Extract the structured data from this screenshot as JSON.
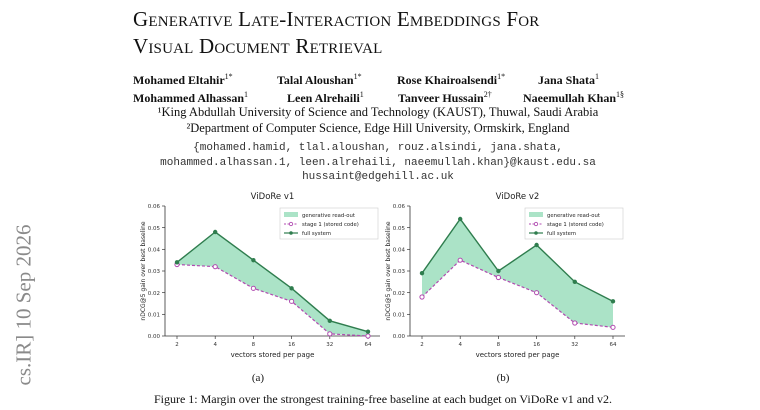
{
  "arxiv_stamp": "cs.IR]  10 Sep 2026",
  "title_line1": "Generative Late-Interaction Embeddings For",
  "title_line2": "Visual Document Retrieval",
  "authors_row1": [
    {
      "name": "Mohamed Eltahir",
      "sup": "1*"
    },
    {
      "name": "Talal Aloushan",
      "sup": "1*"
    },
    {
      "name": "Rose Khairoalsendi",
      "sup": "1*"
    },
    {
      "name": "Jana Shata",
      "sup": "1"
    }
  ],
  "authors_row2": [
    {
      "name": "Mohammed Alhassan",
      "sup": "1"
    },
    {
      "name": "Leen Alrehaili",
      "sup": "1"
    },
    {
      "name": "Tanveer Hussain",
      "sup": "2†"
    },
    {
      "name": "Naeemullah Khan",
      "sup": "1§"
    }
  ],
  "affiliation1": "¹King Abdullah University of Science and Technology (KAUST), Thuwal, Saudi Arabia",
  "affiliation2": "²Department of Computer Science, Edge Hill University, Ormskirk, England",
  "email_line1": "{mohamed.hamid, tlal.aloushan, rouz.alsindi, jana.shata,",
  "email_line2": "mohammed.alhassan.1, leen.alrehaili, naeemullah.khan}@kaust.edu.sa",
  "email_line3": "hussaint@edgehill.ac.uk",
  "colors": {
    "fill": "#8fd9b4",
    "full_line": "#2f7d4e",
    "stage_line": "#b04bb0"
  },
  "chart_data": [
    {
      "type": "line",
      "title": "ViDoRe v1",
      "xlabel": "vectors stored per page",
      "ylabel": "nDCG@5 gain over best baseline",
      "x": [
        "2",
        "4",
        "8",
        "16",
        "32",
        "64"
      ],
      "ylim": [
        0,
        0.06
      ],
      "yticks": [
        "0.00",
        "0.01",
        "0.02",
        "0.03",
        "0.04",
        "0.05",
        "0.06"
      ],
      "legend_position": "top-right",
      "legend": [
        "generative read-out",
        "stage 1 (stored code)",
        "full system"
      ],
      "series": [
        {
          "name": "stage 1 (stored code)",
          "values": [
            0.033,
            0.032,
            0.022,
            0.016,
            0.001,
            0.0
          ]
        },
        {
          "name": "full system",
          "values": [
            0.034,
            0.048,
            0.035,
            0.022,
            0.007,
            0.002
          ]
        }
      ],
      "sub_caption": "(a)"
    },
    {
      "type": "line",
      "title": "ViDoRe v2",
      "xlabel": "vectors stored per page",
      "ylabel": "nDCG@5 gain over best baseline",
      "x": [
        "2",
        "4",
        "8",
        "16",
        "32",
        "64"
      ],
      "ylim": [
        0,
        0.06
      ],
      "yticks": [
        "0.00",
        "0.01",
        "0.02",
        "0.03",
        "0.04",
        "0.05",
        "0.06"
      ],
      "legend_position": "top-right",
      "legend": [
        "generative read-out",
        "stage 1 (stored code)",
        "full system"
      ],
      "series": [
        {
          "name": "stage 1 (stored code)",
          "values": [
            0.018,
            0.035,
            0.027,
            0.02,
            0.006,
            0.004
          ]
        },
        {
          "name": "full system",
          "values": [
            0.029,
            0.054,
            0.03,
            0.042,
            0.025,
            0.016
          ]
        }
      ],
      "sub_caption": "(b)"
    }
  ],
  "figure_caption": "Figure 1: Margin over the strongest training-free baseline at each budget on ViDoRe v1 and v2."
}
